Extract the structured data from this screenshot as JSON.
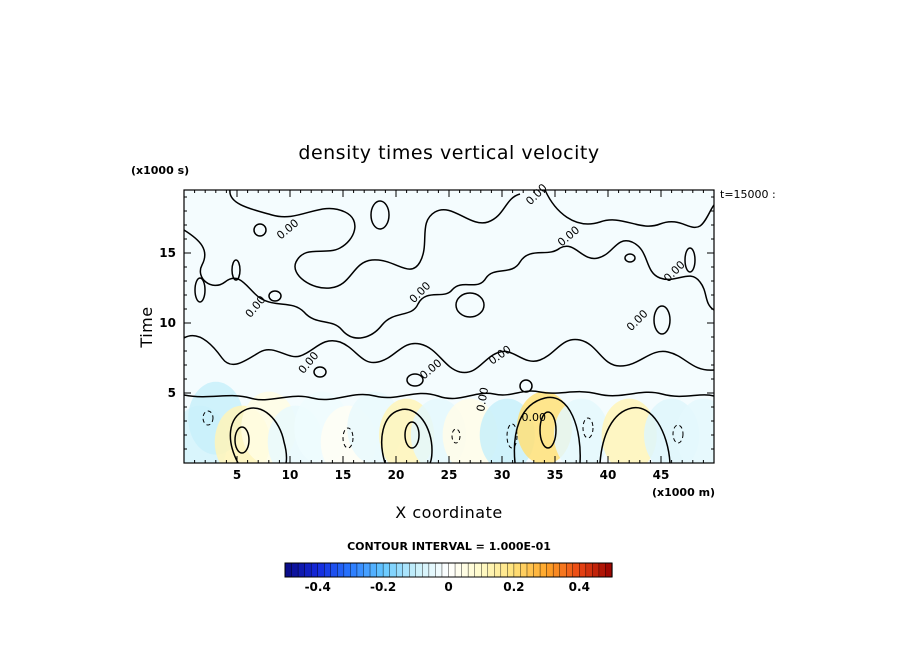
{
  "chart_data": {
    "type": "heatmap",
    "title": "density times vertical velocity",
    "xlabel": "X coordinate",
    "ylabel": "Time",
    "x_unit": "(x1000 m)",
    "y_unit": "(x1000 s)",
    "time_stamp": "t=15000 :",
    "xlim": [
      0,
      50
    ],
    "ylim": [
      0,
      19.5
    ],
    "x_ticks": [
      5,
      10,
      15,
      20,
      25,
      30,
      35,
      40,
      45
    ],
    "y_ticks": [
      5,
      10,
      15
    ],
    "contour_interval_text": "CONTOUR INTERVAL = 1.000E-01",
    "contour_interval": 0.1,
    "colorbar": {
      "min": -0.5,
      "max": 0.5,
      "ticks": [
        -0.4,
        -0.2,
        0,
        0.2,
        0.4
      ],
      "tick_labels": [
        "-0.4",
        "-0.2",
        "0",
        "0.2",
        "0.4"
      ]
    },
    "zero_contour_label": "0.00",
    "cells": [
      {
        "x": 1.5,
        "y": 1.5,
        "value": -0.08
      },
      {
        "x": 3.0,
        "y": 3.2,
        "value": -0.1
      },
      {
        "x": 5.5,
        "y": 1.5,
        "value": 0.12
      },
      {
        "x": 8.0,
        "y": 2.5,
        "value": 0.05
      },
      {
        "x": 10.5,
        "y": 1.5,
        "value": -0.04
      },
      {
        "x": 13.0,
        "y": 2.5,
        "value": -0.03
      },
      {
        "x": 15.5,
        "y": 1.5,
        "value": 0.02
      },
      {
        "x": 18.0,
        "y": 2.5,
        "value": -0.04
      },
      {
        "x": 21.0,
        "y": 2.0,
        "value": 0.12
      },
      {
        "x": 24.0,
        "y": 2.0,
        "value": -0.05
      },
      {
        "x": 27.0,
        "y": 2.0,
        "value": 0.04
      },
      {
        "x": 30.5,
        "y": 2.0,
        "value": -0.1
      },
      {
        "x": 34.0,
        "y": 2.5,
        "value": 0.2
      },
      {
        "x": 37.5,
        "y": 2.0,
        "value": -0.05
      },
      {
        "x": 42.0,
        "y": 2.0,
        "value": 0.12
      },
      {
        "x": 46.0,
        "y": 2.0,
        "value": -0.06
      },
      {
        "x": 49.0,
        "y": 2.0,
        "value": -0.05
      }
    ]
  }
}
